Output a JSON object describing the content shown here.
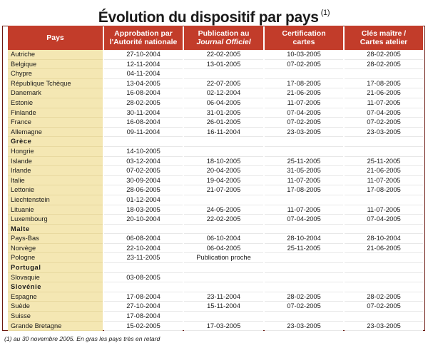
{
  "title": "Évolution du dispositif par pays",
  "title_note": "(1)",
  "columns": [
    {
      "line1": "Pays",
      "line2": "",
      "italic": false
    },
    {
      "line1": "Approbation par",
      "line2": "l'Autorité nationale",
      "italic": false
    },
    {
      "line1": "Publication au",
      "line2": "Journal Officiel",
      "italic": true
    },
    {
      "line1": "Certification",
      "line2": "cartes",
      "italic": false
    },
    {
      "line1": "Clés maître /",
      "line2": "Cartes atelier",
      "italic": false
    }
  ],
  "rows": [
    {
      "pays": "Autriche",
      "late": false,
      "approbation": "27-10-2004",
      "publication": "22-02-2005",
      "certification": "10-03-2005",
      "cles": "28-02-2005"
    },
    {
      "pays": "Belgique",
      "late": false,
      "approbation": "12-11-2004",
      "publication": "13-01-2005",
      "certification": "07-02-2005",
      "cles": "28-02-2005"
    },
    {
      "pays": "Chypre",
      "late": false,
      "approbation": "04-11-2004",
      "publication": "",
      "certification": "",
      "cles": ""
    },
    {
      "pays": "République Tchèque",
      "late": false,
      "approbation": "13-04-2005",
      "publication": "22-07-2005",
      "certification": "17-08-2005",
      "cles": "17-08-2005"
    },
    {
      "pays": "Danemark",
      "late": false,
      "approbation": "16-08-2004",
      "publication": "02-12-2004",
      "certification": "21-06-2005",
      "cles": "21-06-2005"
    },
    {
      "pays": "Estonie",
      "late": false,
      "approbation": "28-02-2005",
      "publication": "06-04-2005",
      "certification": "11-07-2005",
      "cles": "11-07-2005"
    },
    {
      "pays": "Finlande",
      "late": false,
      "approbation": "30-11-2004",
      "publication": "31-01-2005",
      "certification": "07-04-2005",
      "cles": "07-04-2005"
    },
    {
      "pays": "France",
      "late": false,
      "approbation": "16-08-2004",
      "publication": "26-01-2005",
      "certification": "07-02-2005",
      "cles": "07-02-2005"
    },
    {
      "pays": "Allemagne",
      "late": false,
      "approbation": "09-11-2004",
      "publication": "16-11-2004",
      "certification": "23-03-2005",
      "cles": "23-03-2005"
    },
    {
      "pays": "Grèce",
      "late": true,
      "approbation": "",
      "publication": "",
      "certification": "",
      "cles": ""
    },
    {
      "pays": "Hongrie",
      "late": false,
      "approbation": "14-10-2005",
      "publication": "",
      "certification": "",
      "cles": ""
    },
    {
      "pays": "Islande",
      "late": false,
      "approbation": "03-12-2004",
      "publication": "18-10-2005",
      "certification": "25-11-2005",
      "cles": "25-11-2005"
    },
    {
      "pays": "Irlande",
      "late": false,
      "approbation": "07-02-2005",
      "publication": "20-04-2005",
      "certification": "31-05-2005",
      "cles": "21-06-2005"
    },
    {
      "pays": "Italie",
      "late": false,
      "approbation": "30-09-2004",
      "publication": "19-04-2005",
      "certification": "11-07-2005",
      "cles": "11-07-2005"
    },
    {
      "pays": "Lettonie",
      "late": false,
      "approbation": "28-06-2005",
      "publication": "21-07-2005",
      "certification": "17-08-2005",
      "cles": "17-08-2005"
    },
    {
      "pays": "Liechtenstein",
      "late": false,
      "approbation": "01-12-2004",
      "publication": "",
      "certification": "",
      "cles": ""
    },
    {
      "pays": "Lituanie",
      "late": false,
      "approbation": "18-03-2005",
      "publication": "24-05-2005",
      "certification": "11-07-2005",
      "cles": "11-07-2005"
    },
    {
      "pays": "Luxembourg",
      "late": false,
      "approbation": "20-10-2004",
      "publication": "22-02-2005",
      "certification": "07-04-2005",
      "cles": "07-04-2005"
    },
    {
      "pays": "Malte",
      "late": true,
      "approbation": "",
      "publication": "",
      "certification": "",
      "cles": ""
    },
    {
      "pays": "Pays-Bas",
      "late": false,
      "approbation": "06-08-2004",
      "publication": "06-10-2004",
      "certification": "28-10-2004",
      "cles": "28-10-2004"
    },
    {
      "pays": "Norvège",
      "late": false,
      "approbation": "22-10-2004",
      "publication": "06-04-2005",
      "certification": "25-11-2005",
      "cles": "21-06-2005"
    },
    {
      "pays": "Pologne",
      "late": false,
      "approbation": "23-11-2005",
      "publication": "Publication proche",
      "certification": "",
      "cles": ""
    },
    {
      "pays": "Portugal",
      "late": true,
      "approbation": "",
      "publication": "",
      "certification": "",
      "cles": ""
    },
    {
      "pays": "Slovaquie",
      "late": false,
      "approbation": "03-08-2005",
      "publication": "",
      "certification": "",
      "cles": ""
    },
    {
      "pays": "Slovénie",
      "late": true,
      "approbation": "",
      "publication": "",
      "certification": "",
      "cles": ""
    },
    {
      "pays": "Espagne",
      "late": false,
      "approbation": "17-08-2004",
      "publication": "23-11-2004",
      "certification": "28-02-2005",
      "cles": "28-02-2005"
    },
    {
      "pays": "Suède",
      "late": false,
      "approbation": "27-10-2004",
      "publication": "15-11-2004",
      "certification": "07-02-2005",
      "cles": "07-02-2005"
    },
    {
      "pays": "Suisse",
      "late": false,
      "approbation": "17-08-2004",
      "publication": "",
      "certification": "",
      "cles": ""
    },
    {
      "pays": "Grande Bretagne",
      "late": false,
      "approbation": "15-02-2005",
      "publication": "17-03-2005",
      "certification": "23-03-2005",
      "cles": "23-03-2005"
    }
  ],
  "footnote": "(1) au 30 novembre 2005. En gras les pays très en retard",
  "colors": {
    "header_bg": "#c23c2a",
    "country_col_bg": "#f4e7b3",
    "frame": "#6b1810"
  }
}
